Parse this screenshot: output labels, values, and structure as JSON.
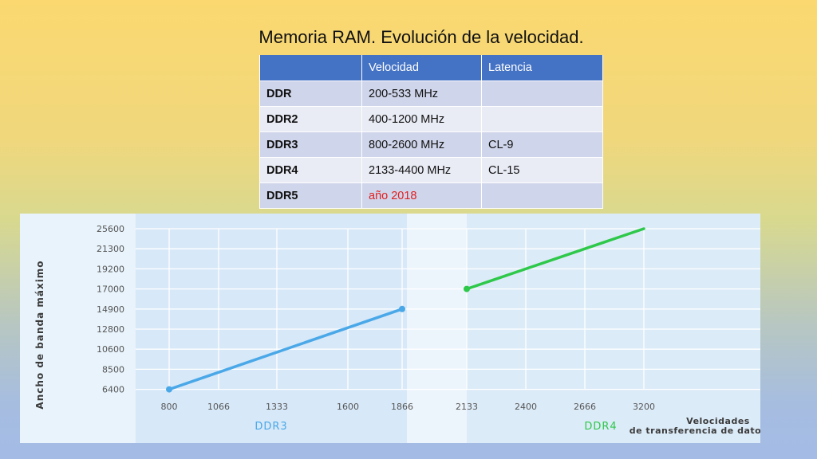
{
  "title": "Memoria RAM. Evolución de la velocidad.",
  "table": {
    "headers": [
      "",
      "Velocidad",
      "Latencia"
    ],
    "rows": [
      {
        "name": "DDR",
        "speed": "200-533 MHz",
        "latency": ""
      },
      {
        "name": "DDR2",
        "speed": "400-1200 MHz",
        "latency": ""
      },
      {
        "name": "DDR3",
        "speed": "800-2600 MHz",
        "latency": "CL-9"
      },
      {
        "name": "DDR4",
        "speed": "2133-4400 MHz",
        "latency": "CL-15"
      },
      {
        "name": "DDR5",
        "speed": "año 2018",
        "latency": ""
      }
    ]
  },
  "chart_data": {
    "type": "line",
    "ylabel": "Ancho de banda máximo",
    "xlabel": "Velocidades de transferencia de datos",
    "x_ticks": [
      "800",
      "1066",
      "1333",
      "1600",
      "1866",
      "2133",
      "2400",
      "2666",
      "3200"
    ],
    "y_ticks": [
      "6400",
      "8500",
      "10600",
      "12800",
      "14900",
      "17000",
      "19200",
      "21300",
      "25600"
    ],
    "series": [
      {
        "name": "DDR3",
        "color": "#4aa8e8",
        "points": [
          {
            "x": "800",
            "y": 6400
          },
          {
            "x": "1866",
            "y": 14900
          }
        ]
      },
      {
        "name": "DDR4",
        "color": "#2ec84a",
        "points": [
          {
            "x": "2133",
            "y": 17000
          },
          {
            "x": "3200",
            "y": 25600
          }
        ]
      }
    ],
    "grid": true
  }
}
